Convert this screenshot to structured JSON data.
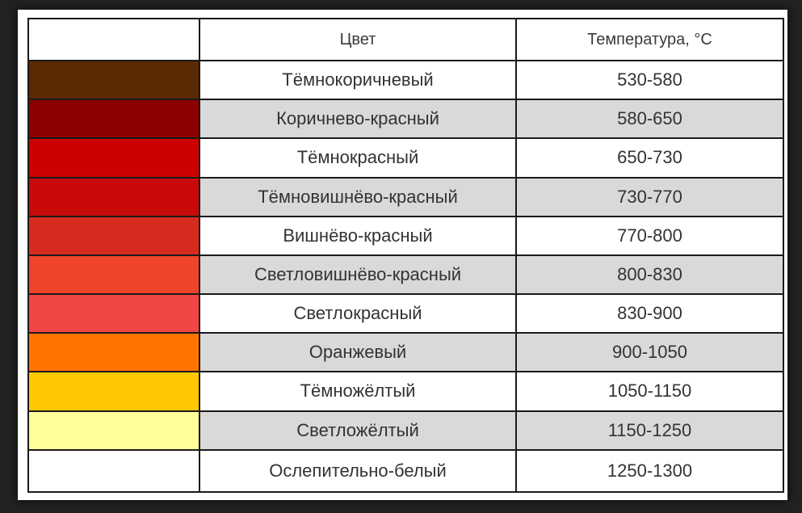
{
  "table": {
    "headers": [
      "",
      "Цвет",
      "Температура, °С"
    ],
    "rows": [
      {
        "swatch": "#5a2a04",
        "name": "Тёмнокоричневый",
        "temp": "530-580"
      },
      {
        "swatch": "#8c0000",
        "name": "Коричнево-красный",
        "temp": "580-650"
      },
      {
        "swatch": "#cc0000",
        "name": "Тёмнокрасный",
        "temp": "650-730"
      },
      {
        "swatch": "#c80a0a",
        "name": "Тёмновишнёво-красный",
        "temp": "730-770"
      },
      {
        "swatch": "#d82a1e",
        "name": "Вишнёво-красный",
        "temp": "770-800"
      },
      {
        "swatch": "#f0442a",
        "name": "Светловишнёво-красный",
        "temp": "800-830"
      },
      {
        "swatch": "#f24646",
        "name": "Светлокрасный",
        "temp": "830-900"
      },
      {
        "swatch": "#ff7400",
        "name": "Оранжевый",
        "temp": "900-1050"
      },
      {
        "swatch": "#ffc800",
        "name": "Тёмножёлтый",
        "temp": "1050-1150"
      },
      {
        "swatch": "#ffff99",
        "name": "Светложёлтый",
        "temp": "1150-1250"
      },
      {
        "swatch": "#ffffff",
        "name": "Ослепительно-белый",
        "temp": "1250-1300"
      }
    ]
  }
}
